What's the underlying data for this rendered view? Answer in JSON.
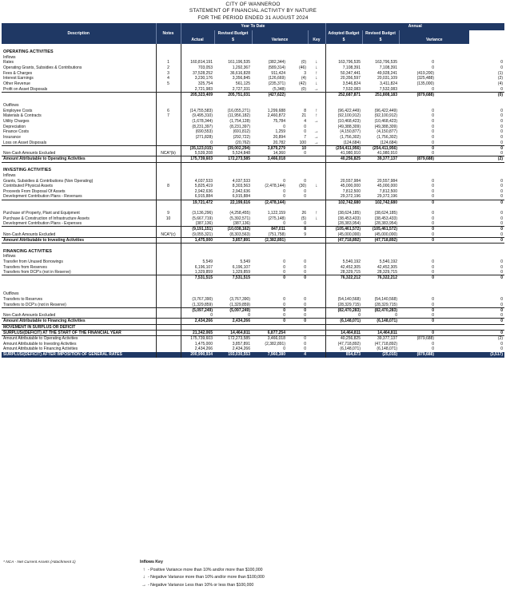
{
  "header": {
    "org": "CITY OF WANNEROO",
    "title": "STATEMENT OF FINANCIAL ACTIVITY BY NATURE",
    "period": "FOR THE PERIOD ENDED 31 AUGUST 2024"
  },
  "columns": {
    "ytd": "Year To Date",
    "annual": "Annual",
    "description": "Description",
    "notes": "Notes",
    "actual": "Actual",
    "revised_budget": "Revised Budget",
    "variance": "Variance",
    "adopted_budget": "Adopted Budget",
    "key": "Key",
    "dollar": "$",
    "pct": "%"
  },
  "rows": [
    {
      "t": "gap"
    },
    {
      "t": "sec",
      "d": "OPERATING ACTIVITIES"
    },
    {
      "t": "sub",
      "d": "Inflows"
    },
    {
      "d": "Rates",
      "n": "1",
      "a": "160,814,191",
      "rb": "161,196,535",
      "v": "(382,344)",
      "p": "(0)",
      "k": "↓",
      "ab": "163,796,535",
      "rb2": "163,796,535",
      "v2": "0",
      "p2": "0"
    },
    {
      "d": "Operating Grants, Subsidies & Contributions",
      "n": "2",
      "a": "703,053",
      "rb": "1,292,367",
      "v": "(589,314)",
      "p": "(46)",
      "k": "↓",
      "ab": "7,108,391",
      "rb2": "7,108,391",
      "v2": "0",
      "p2": "0"
    },
    {
      "d": "Fees & Charges",
      "n": "3",
      "a": "37,528,252",
      "rb": "36,616,828",
      "v": "911,424",
      "p": "3",
      "k": "↑",
      "ab": "50,347,441",
      "rb2": "49,928,241",
      "v2": "(419,200)",
      "p2": "(1)"
    },
    {
      "d": "Interest Earnings",
      "n": "4",
      "a": "3,230,176",
      "rb": "3,356,845",
      "v": "(126,669)",
      "p": "(4)",
      "k": "↓",
      "ab": "20,356,597",
      "rb2": "20,031,109",
      "v2": "(325,488)",
      "p2": "(2)"
    },
    {
      "d": "Other Revenue",
      "n": "5",
      "a": "325,754",
      "rb": "561,125",
      "v": "(235,371)",
      "p": "(42)",
      "k": "↓",
      "ab": "3,546,824",
      "rb2": "3,411,824",
      "v2": "(135,000)",
      "p2": "(4)"
    },
    {
      "d": "Profit on Asset Disposals",
      "n": "",
      "a": "2,721,983",
      "rb": "2,727,331",
      "v": "(5,348)",
      "p": "(0)",
      "k": "→",
      "ab": "7,532,083",
      "rb2": "7,532,083",
      "v2": "0",
      "p2": "0"
    },
    {
      "t": "tot",
      "d": "",
      "n": "",
      "a": "205,323,409",
      "rb": "205,751,031",
      "v": "(427,622)",
      "p": "",
      "k": "",
      "ab": "252,687,871",
      "rb2": "251,808,183",
      "v2": "(879,688)",
      "p2": "(0)"
    },
    {
      "t": "gap"
    },
    {
      "t": "sub",
      "d": "Outflows"
    },
    {
      "d": "Employee Costs",
      "n": "6",
      "a": "(14,755,583)",
      "rb": "(16,055,271)",
      "v": "1,299,688",
      "p": "8",
      "k": "↑",
      "ab": "(96,422,449)",
      "rb2": "(96,422,449)",
      "v2": "0",
      "p2": "0"
    },
    {
      "d": "Materials & Contracts",
      "n": "7",
      "a": "(9,495,310)",
      "rb": "(11,956,182)",
      "v": "2,460,872",
      "p": "21",
      "k": "↑",
      "ab": "(92,100,912)",
      "rb2": "(92,100,912)",
      "v2": "0",
      "p2": "0"
    },
    {
      "d": "Utility Charges",
      "n": "",
      "a": "(1,678,344)",
      "rb": "(1,754,128)",
      "v": "75,784",
      "p": "4",
      "k": "→",
      "ab": "(10,468,423)",
      "rb2": "(10,468,423)",
      "v2": "0",
      "p2": "0"
    },
    {
      "d": "Depreciation",
      "n": "",
      "a": "(8,231,397)",
      "rb": "(8,231,397)",
      "v": "0",
      "p": "0",
      "k": "",
      "ab": "(49,388,309)",
      "rb2": "(49,388,309)",
      "v2": "0",
      "p2": "0"
    },
    {
      "d": "Finance Costs",
      "n": "",
      "a": "(690,553)",
      "rb": "(691,812)",
      "v": "1,259",
      "p": "0",
      "k": "→",
      "ab": "(4,150,877)",
      "rb2": "(4,150,877)",
      "v2": "0",
      "p2": "0"
    },
    {
      "d": "Insurance",
      "n": "",
      "a": "(271,828)",
      "rb": "(292,722)",
      "v": "20,894",
      "p": "7",
      "k": "→",
      "ab": "(1,756,302)",
      "rb2": "(1,756,302)",
      "v2": "0",
      "p2": "0"
    },
    {
      "d": "Loss on Asset Disposals",
      "n": "",
      "a": "0",
      "rb": "(20,762)",
      "v": "20,782",
      "p": "100",
      "k": "→",
      "ab": "(124,684)",
      "rb2": "(124,684)",
      "v2": "0",
      "p2": "0"
    },
    {
      "t": "tot",
      "d": "",
      "n": "",
      "a": "(35,123,015)",
      "rb": "(39,002,294)",
      "v": "3,879,279",
      "p": "10",
      "k": "",
      "ab": "(254,411,956)",
      "rb2": "(254,411,956)",
      "v2": "0",
      "p2": "0"
    },
    {
      "t": "sub",
      "d": "Non-Cash Amounts Excluded",
      "n": "NCA*(b)",
      "a": "5,539,208",
      "rb": "5,524,848",
      "v": "14,360",
      "p": "0",
      "k": "",
      "ab": "41,980,910",
      "rb2": "41,980,910",
      "v2": "0",
      "p2": "0"
    },
    {
      "t": "amt",
      "d": "Amount Attributable to Operating Activities",
      "n": "",
      "a": "175,739,603",
      "rb": "172,273,585",
      "v": "3,466,018",
      "p": "",
      "k": "",
      "ab": "40,256,825",
      "rb2": "39,377,137",
      "v2": "(879,688)",
      "p2": "(2)"
    },
    {
      "t": "gap"
    },
    {
      "t": "sec",
      "d": "INVESTING ACTIVITIES"
    },
    {
      "t": "sub",
      "d": "Inflows"
    },
    {
      "d": "Grants, Subsidies & Contributions (Non Operating)",
      "n": "",
      "a": "4,037,533",
      "rb": "4,037,533",
      "v": "0",
      "p": "0",
      "k": "",
      "ab": "20,557,984",
      "rb2": "20,557,984",
      "v2": "0",
      "p2": "0"
    },
    {
      "d": "Contributed Physical Assets",
      "n": "8",
      "a": "5,825,419",
      "rb": "8,303,563",
      "v": "(2,478,144)",
      "p": "(30)",
      "k": "↓",
      "ab": "45,000,000",
      "rb2": "45,000,000",
      "v2": "0",
      "p2": "0"
    },
    {
      "d": "Proceeds From Disposal Of Assets",
      "n": "",
      "a": "2,942,636",
      "rb": "2,942,636",
      "v": "0",
      "p": "0",
      "k": "",
      "ab": "7,812,500",
      "rb2": "7,812,500",
      "v2": "0",
      "p2": "0"
    },
    {
      "d": "Development Contribution Plans - Revenues",
      "n": "",
      "a": "6,915,884",
      "rb": "6,915,884",
      "v": "0",
      "p": "0",
      "k": "",
      "ab": "29,372,196",
      "rb2": "29,372,196",
      "v2": "0",
      "p2": "0"
    },
    {
      "t": "tot",
      "d": "",
      "n": "",
      "a": "19,721,472",
      "rb": "22,199,616",
      "v": "(2,478,144)",
      "p": "",
      "k": "",
      "ab": "102,742,680",
      "rb2": "102,742,680",
      "v2": "0",
      "p2": "0"
    },
    {
      "t": "gap"
    },
    {
      "d": "Purchase of Property, Plant and Equipment",
      "n": "9",
      "a": "(3,136,296)",
      "rb": "(4,258,455)",
      "v": "1,122,159",
      "p": "26",
      "k": "↑",
      "ab": "(38,624,185)",
      "rb2": "(38,624,185)",
      "v2": "0",
      "p2": "0"
    },
    {
      "d": "Purchase & Construction of Infrastructure Assets",
      "n": "10",
      "a": "(5,667,719)",
      "rb": "(5,392,571)",
      "v": "(275,148)",
      "p": "(5)",
      "k": "↓",
      "ab": "(38,453,433)",
      "rb2": "(38,453,433)",
      "v2": "0",
      "p2": "0"
    },
    {
      "d": "Development Contribution Plans - Expenses",
      "n": "",
      "a": "(387,136)",
      "rb": "(387,136)",
      "v": "0",
      "p": "0",
      "k": "",
      "ab": "(28,383,954)",
      "rb2": "(28,383,954)",
      "v2": "0",
      "p2": "0"
    },
    {
      "t": "tot",
      "d": "",
      "n": "",
      "a": "(9,191,151)",
      "rb": "(10,038,162)",
      "v": "847,011",
      "p": "8",
      "k": "",
      "ab": "(105,461,572)",
      "rb2": "(105,461,572)",
      "v2": "0",
      "p2": "0"
    },
    {
      "t": "sub",
      "d": "Non-Cash Amounts Excluded",
      "n": "NCA*(c)",
      "a": "(9,055,321)",
      "rb": "(8,303,563)",
      "v": "(751,758)",
      "p": "9",
      "k": "",
      "ab": "(45,000,000)",
      "rb2": "(45,000,000)",
      "v2": "0",
      "p2": "0"
    },
    {
      "t": "amt",
      "d": "Amount Attributable to Investing Activities",
      "n": "",
      "a": "1,475,000",
      "rb": "3,857,891",
      "v": "(2,382,891)",
      "p": "",
      "k": "",
      "ab": "(47,718,892)",
      "rb2": "(47,718,892)",
      "v2": "0",
      "p2": "0"
    },
    {
      "t": "gap"
    },
    {
      "t": "sec",
      "d": "FINANCING ACTIVITIES"
    },
    {
      "t": "sub",
      "d": "Inflows"
    },
    {
      "d": "Transfer from Unused Borrowings",
      "n": "",
      "a": "5,549",
      "rb": "5,549",
      "v": "0",
      "p": "0",
      "k": "",
      "ab": "5,540,192",
      "rb2": "5,540,192",
      "v2": "0",
      "p2": "0"
    },
    {
      "d": "Transfers from Reserves",
      "n": "",
      "a": "6,196,107",
      "rb": "6,196,107",
      "v": "0",
      "p": "0",
      "k": "",
      "ab": "42,452,305",
      "rb2": "42,452,305",
      "v2": "0",
      "p2": "0"
    },
    {
      "d": "Transfers from DCP's (not in Reserve)",
      "n": "",
      "a": "1,329,859",
      "rb": "1,329,859",
      "v": "0",
      "p": "0",
      "k": "",
      "ab": "28,329,715",
      "rb2": "28,329,715",
      "v2": "0",
      "p2": "0"
    },
    {
      "t": "tot",
      "d": "",
      "n": "",
      "a": "7,531,515",
      "rb": "7,531,515",
      "v": "0",
      "p": "0",
      "k": "",
      "ab": "76,322,212",
      "rb2": "76,322,212",
      "v2": "0",
      "p2": "0"
    },
    {
      "t": "gap"
    },
    {
      "t": "gap"
    },
    {
      "t": "sub",
      "d": "Outflows"
    },
    {
      "d": "Transfers to Reserves",
      "n": "",
      "a": "(3,767,390)",
      "rb": "(3,767,390)",
      "v": "0",
      "p": "0",
      "k": "",
      "ab": "(54,140,568)",
      "rb2": "(54,140,568)",
      "v2": "0",
      "p2": "0"
    },
    {
      "d": "Transfers to DCP's (not in Reserve)",
      "n": "",
      "a": "(1,329,859)",
      "rb": "(1,329,859)",
      "v": "0",
      "p": "0",
      "k": "",
      "ab": "(28,329,715)",
      "rb2": "(28,329,715)",
      "v2": "0",
      "p2": "0"
    },
    {
      "t": "tot",
      "d": "",
      "n": "",
      "a": "(5,097,249)",
      "rb": "(5,097,249)",
      "v": "0",
      "p": "0",
      "k": "",
      "ab": "(82,470,283)",
      "rb2": "(82,470,283)",
      "v2": "0",
      "p2": "0"
    },
    {
      "t": "sub",
      "d": "Non-Cash Amounts Excluded",
      "n": "",
      "a": "0",
      "rb": "0",
      "v": "0",
      "p": "0",
      "k": "",
      "ab": "0",
      "rb2": "0",
      "v2": "0",
      "p2": "0"
    },
    {
      "t": "amt",
      "d": "Amount Attributable to Financing Activities",
      "n": "",
      "a": "2,434,266",
      "rb": "2,434,266",
      "v": "0",
      "p": "0",
      "k": "",
      "ab": "(6,148,071)",
      "rb2": "(6,148,071)",
      "v2": "0",
      "p2": "0"
    },
    {
      "t": "mov",
      "d": "MOVEMENT IN SURPLUS OR DEFICIT",
      "n": "",
      "a": "",
      "rb": "",
      "v": "",
      "p": "",
      "k": "",
      "ab": "",
      "rb2": "",
      "v2": "",
      "p2": ""
    },
    {
      "t": "mov",
      "d": "SURPLUS/(DEFICIT) AT THE START OF THE FINANCIAL YEAR",
      "n": "",
      "a": "21,342,065",
      "rb": "14,464,811",
      "v": "6,877,254",
      "p": "",
      "k": "",
      "ab": "14,464,811",
      "rb2": "14,464,811",
      "v2": "0",
      "p2": "0"
    },
    {
      "d": "Amount Attributable to Operating Activities",
      "n": "",
      "a": "175,739,603",
      "rb": "172,273,585",
      "v": "3,466,018",
      "p": "0",
      "k": "",
      "ab": "40,256,825",
      "rb2": "39,377,137",
      "v2": "(879,688)",
      "p2": "(2)"
    },
    {
      "d": "Amount Attributable to Investing Activities",
      "n": "",
      "a": "1,475,000",
      "rb": "3,857,891",
      "v": "(2,382,891)",
      "p": "0",
      "k": "",
      "ab": "(47,718,892)",
      "rb2": "(47,718,892)",
      "v2": "0",
      "p2": "0"
    },
    {
      "d": "Amount Attributable to Financing Activities",
      "n": "",
      "a": "2,434,266",
      "rb": "2,434,266",
      "v": "0",
      "p": "0",
      "k": "",
      "ab": "(6,148,071)",
      "rb2": "(6,148,071)",
      "v2": "0",
      "p2": "0"
    },
    {
      "t": "fin",
      "d": "SURPLUS/(DEFICIT) AFTER IMPOSITION OF GENERAL RATES",
      "n": "",
      "a": "200,990,934",
      "rb": "193,030,553",
      "v": "7,960,380",
      "p": "4",
      "k": "",
      "ab": "854,673",
      "rb2": "(25,015)",
      "v2": "(879,688)",
      "p2": "(3,517)"
    }
  ],
  "footnote": "* NCA - Net Current Assets (Attachment 1)",
  "key": {
    "title": "Inflows Key",
    "items": [
      {
        "glyph": "↑",
        "text": "- Positive Variance more than 10% and/or more than $100,000"
      },
      {
        "glyph": "↓",
        "text": "- Negative Variance more than 10% and/or more than $100,000"
      },
      {
        "glyph": "→",
        "text": "- Negative Variance Less than 10% or less than $100,000"
      }
    ]
  }
}
